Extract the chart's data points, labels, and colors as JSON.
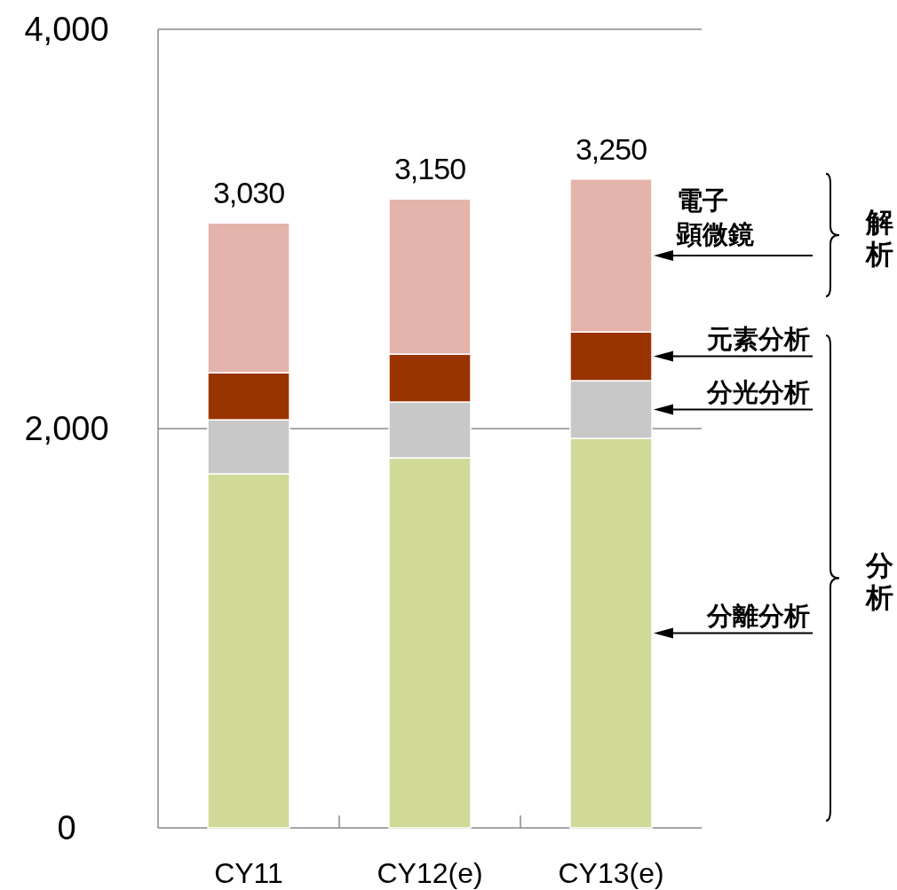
{
  "chart_data": {
    "type": "bar",
    "stacked": true,
    "categories": [
      "CY11",
      "CY12(e)",
      "CY13(e)"
    ],
    "series": [
      {
        "name": "分離分析",
        "color": "#d0d997",
        "values": [
          1773,
          1853,
          1951
        ]
      },
      {
        "name": "分光分析",
        "color": "#c8c8c8",
        "values": [
          271,
          280,
          289
        ]
      },
      {
        "name": "元素分析",
        "color": "#993300",
        "values": [
          236,
          240,
          244
        ]
      },
      {
        "name": "電子顕微鏡",
        "color": "#e4b4ac",
        "values": [
          750,
          777,
          766
        ]
      }
    ],
    "totals": [
      "3,030",
      "3,150",
      "3,250"
    ],
    "ylim": [
      0,
      4000
    ],
    "yticks": [
      {
        "value": 0,
        "label": "0"
      },
      {
        "value": 2000,
        "label": "2,000"
      },
      {
        "value": 4000,
        "label": "4,000"
      }
    ],
    "grid": "y",
    "annotations": [
      "解析",
      "分析"
    ]
  }
}
